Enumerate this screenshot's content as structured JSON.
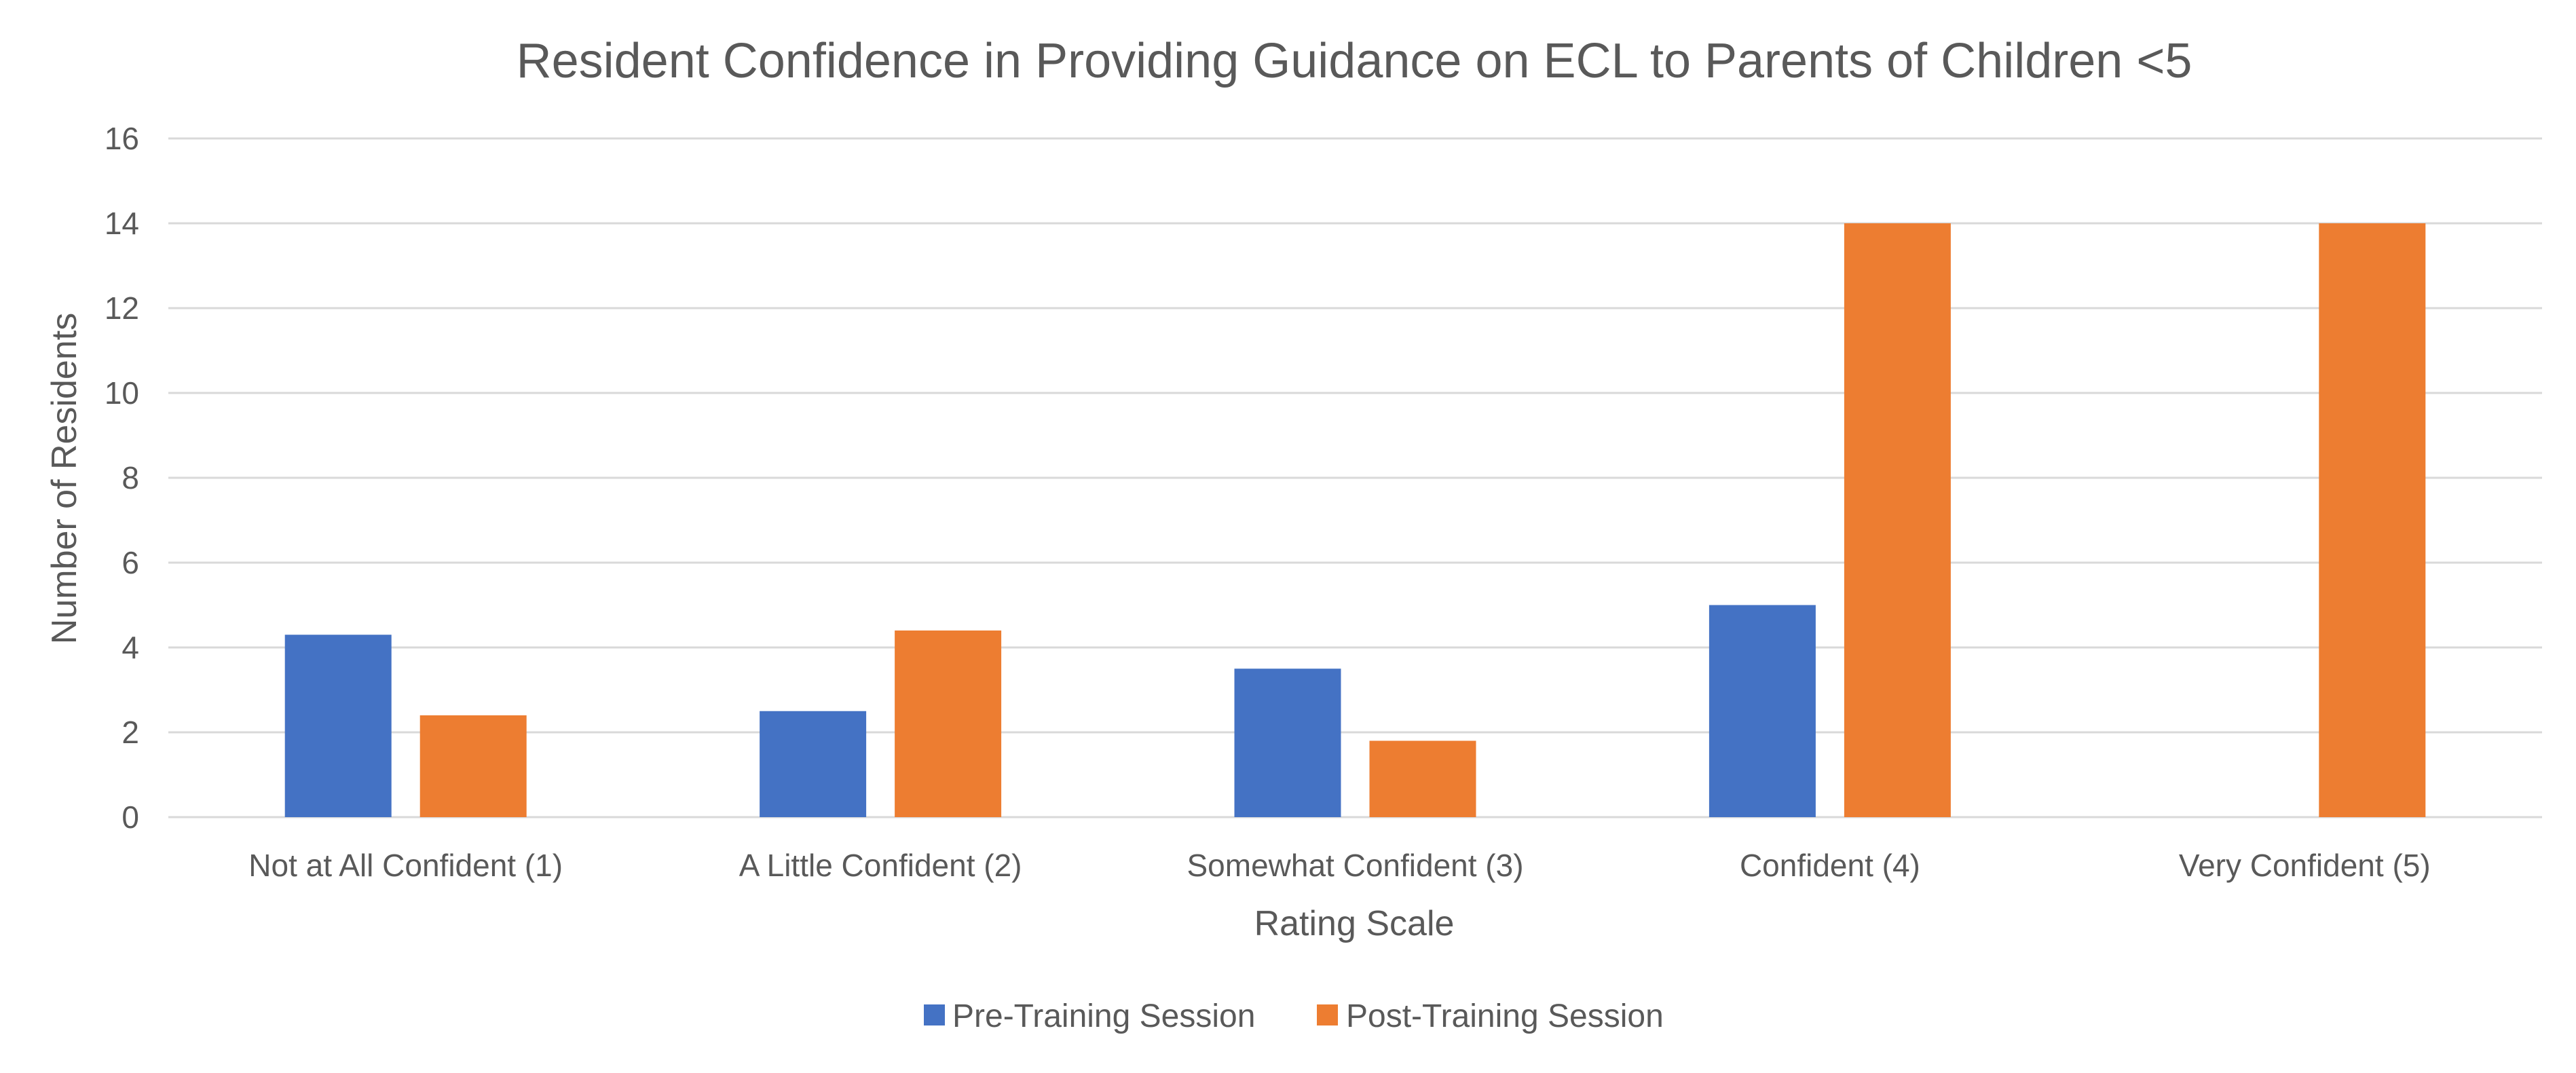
{
  "chart_data": {
    "type": "bar",
    "title": "Resident Confidence in Providing Guidance on ECL to Parents of Children <5",
    "xlabel": "Rating Scale",
    "ylabel": "Number of Residents",
    "categories": [
      "Not at All Confident (1)",
      "A Little Confident (2)",
      "Somewhat Confident (3)",
      "Confident (4)",
      "Very Confident (5)"
    ],
    "series": [
      {
        "name": "Pre-Training Session",
        "color": "#4472C4",
        "values": [
          4.3,
          2.5,
          3.5,
          5,
          0
        ]
      },
      {
        "name": "Post-Training Session",
        "color": "#ED7D31",
        "values": [
          2.4,
          4.4,
          1.8,
          14,
          14
        ]
      }
    ],
    "ylim": [
      0,
      16
    ],
    "yticks": [
      0,
      2,
      4,
      6,
      8,
      10,
      12,
      14,
      16
    ],
    "grid": true,
    "legend_position": "bottom"
  }
}
